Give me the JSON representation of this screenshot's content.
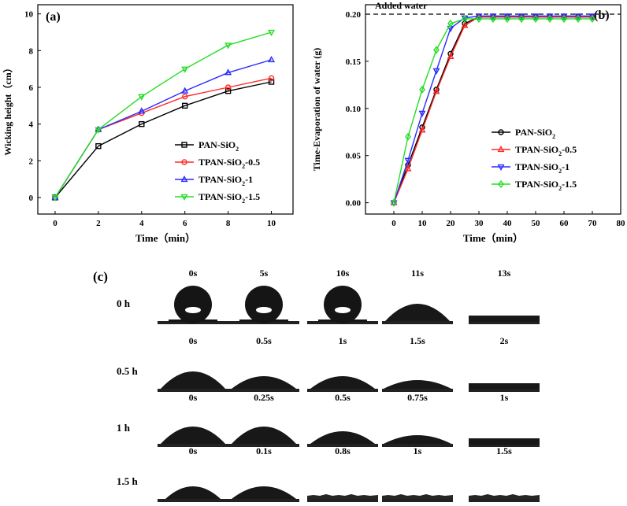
{
  "chart_data": [
    {
      "type": "line",
      "panel_label": "(a)",
      "xlabel": "Time（min）",
      "ylabel": "Wicking height（cm）",
      "x": [
        0,
        2,
        4,
        6,
        8,
        10
      ],
      "xlim": [
        -0.8,
        11
      ],
      "ylim": [
        -0.9,
        10.5
      ],
      "xticks": [
        0,
        2,
        4,
        6,
        8,
        10
      ],
      "yticks": [
        0,
        2,
        4,
        6,
        8,
        10
      ],
      "legend_position": "bottom-right",
      "series": [
        {
          "name": "PAN-SiO",
          "sub": "2",
          "suffix": "",
          "color": "#000000",
          "marker": "square",
          "values": [
            0,
            2.8,
            4.0,
            5.0,
            5.8,
            6.3
          ]
        },
        {
          "name": "TPAN-SiO",
          "sub": "2",
          "suffix": "-0.5",
          "color": "#ff2a2a",
          "marker": "circle",
          "values": [
            0,
            3.7,
            4.6,
            5.5,
            6.0,
            6.5
          ]
        },
        {
          "name": "TPAN-SiO",
          "sub": "2",
          "suffix": "-1",
          "color": "#2a2aff",
          "marker": "triangle-up",
          "values": [
            0,
            3.7,
            4.7,
            5.8,
            6.8,
            7.5
          ]
        },
        {
          "name": "TPAN-SiO",
          "sub": "2",
          "suffix": "-1.5",
          "color": "#22dd22",
          "marker": "triangle-down",
          "values": [
            0,
            3.7,
            5.5,
            7.0,
            8.3,
            9.0
          ]
        }
      ]
    },
    {
      "type": "line",
      "panel_label": "(b)",
      "xlabel": "Time（min）",
      "ylabel": "Time-Evaporation of water (g)",
      "annotation": "Added water",
      "reference_line": 0.2,
      "x": [
        0,
        5,
        10,
        15,
        20,
        25,
        30,
        35,
        40,
        45,
        50,
        55,
        60,
        65,
        70
      ],
      "xlim": [
        -10,
        80
      ],
      "ylim": [
        -0.012,
        0.21
      ],
      "xticks": [
        0,
        10,
        20,
        30,
        40,
        50,
        60,
        70,
        80
      ],
      "yticks": [
        0.0,
        0.05,
        0.1,
        0.15,
        0.2
      ],
      "ytick_labels": [
        "0.00",
        "0.05",
        "0.10",
        "0.15",
        "0.20"
      ],
      "legend_position": "bottom-right",
      "series": [
        {
          "name": "PAN-SiO",
          "sub": "2",
          "suffix": "",
          "color": "#000000",
          "marker": "circle",
          "values": [
            0,
            0.04,
            0.08,
            0.12,
            0.158,
            0.19,
            0.197,
            0.197,
            0.197,
            0.197,
            0.197,
            0.197,
            0.197,
            0.197,
            0.197
          ]
        },
        {
          "name": "TPAN-SiO",
          "sub": "2",
          "suffix": "-0.5",
          "color": "#ff2a2a",
          "marker": "triangle-up",
          "values": [
            0,
            0.036,
            0.077,
            0.118,
            0.155,
            0.188,
            0.197,
            0.197,
            0.197,
            0.197,
            0.197,
            0.197,
            0.197,
            0.197,
            0.197
          ]
        },
        {
          "name": "TPAN-SiO",
          "sub": "2",
          "suffix": "-1",
          "color": "#2a2aff",
          "marker": "triangle-down",
          "values": [
            0,
            0.045,
            0.095,
            0.14,
            0.185,
            0.196,
            0.198,
            0.198,
            0.198,
            0.198,
            0.198,
            0.198,
            0.198,
            0.198,
            0.198
          ]
        },
        {
          "name": "TPAN-SiO",
          "sub": "2",
          "suffix": "-1.5",
          "color": "#22dd22",
          "marker": "diamond",
          "values": [
            0,
            0.07,
            0.12,
            0.162,
            0.19,
            0.195,
            0.195,
            0.195,
            0.195,
            0.195,
            0.195,
            0.195,
            0.195,
            0.195,
            0.195
          ]
        }
      ]
    }
  ],
  "panel_c": {
    "label": "(c)",
    "rows": [
      {
        "label": "0 h",
        "times": [
          "0s",
          "5s",
          "10s",
          "11s",
          "13s"
        ],
        "shapes": [
          "sphere",
          "sphere",
          "sphere",
          "cap",
          "film"
        ]
      },
      {
        "label": "0.5 h",
        "times": [
          "0s",
          "0.5s",
          "1s",
          "1.5s",
          "2s"
        ],
        "shapes": [
          "cap",
          "cap-flat",
          "cap-flat",
          "lens",
          "film"
        ]
      },
      {
        "label": "1 h",
        "times": [
          "0s",
          "0.25s",
          "0.5s",
          "0.75s",
          "1s"
        ],
        "shapes": [
          "cap",
          "cap",
          "cap-flat",
          "lens",
          "film"
        ]
      },
      {
        "label": "1.5 h",
        "times": [
          "0s",
          "0.1s",
          "0.8s",
          "1s",
          "1.5s"
        ],
        "shapes": [
          "cap-small",
          "cap-flat",
          "film-rough",
          "film-rough",
          "film-rough"
        ]
      }
    ]
  }
}
